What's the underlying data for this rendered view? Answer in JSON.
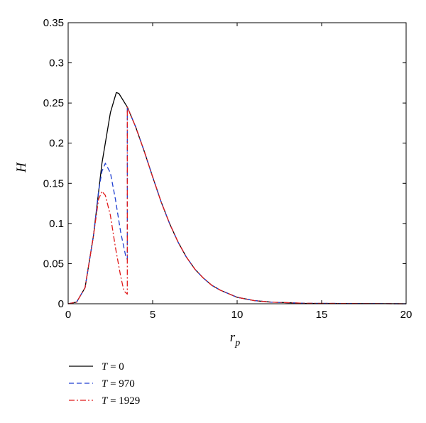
{
  "chart_data": {
    "type": "line",
    "title": "",
    "xlabel": "r",
    "xlabel_sub": "p",
    "ylabel": "H",
    "xlim": [
      0,
      20
    ],
    "ylim": [
      0,
      0.35
    ],
    "x_ticks": [
      "0",
      "5",
      "10",
      "15",
      "20"
    ],
    "y_ticks": [
      "0",
      "0.05",
      "0.1",
      "0.15",
      "0.2",
      "0.25",
      "0.3",
      "0.35"
    ],
    "grid": false,
    "legend_position": "below",
    "series": [
      {
        "name_var": "T",
        "name_eq": " = 0",
        "color": "#000000",
        "style": "solid",
        "points": [
          [
            0,
            0
          ],
          [
            0.5,
            0.002
          ],
          [
            1.0,
            0.02
          ],
          [
            1.5,
            0.085
          ],
          [
            2.0,
            0.175
          ],
          [
            2.5,
            0.238
          ],
          [
            2.85,
            0.263
          ],
          [
            3.0,
            0.262
          ],
          [
            3.5,
            0.245
          ],
          [
            4.0,
            0.22
          ],
          [
            4.5,
            0.19
          ],
          [
            5.0,
            0.158
          ],
          [
            5.5,
            0.127
          ],
          [
            6.0,
            0.1
          ],
          [
            6.5,
            0.077
          ],
          [
            7.0,
            0.058
          ],
          [
            7.5,
            0.043
          ],
          [
            8.0,
            0.032
          ],
          [
            8.5,
            0.023
          ],
          [
            9.0,
            0.017
          ],
          [
            10.0,
            0.008
          ],
          [
            11.0,
            0.004
          ],
          [
            12.0,
            0.002
          ],
          [
            14.0,
            0.0005
          ],
          [
            20.0,
            0
          ]
        ]
      },
      {
        "name_var": "T",
        "name_eq": " = 970",
        "color": "#1f3fd1",
        "style": "dashed",
        "points": [
          [
            0,
            0
          ],
          [
            0.5,
            0.002
          ],
          [
            1.0,
            0.02
          ],
          [
            1.5,
            0.085
          ],
          [
            1.8,
            0.14
          ],
          [
            2.0,
            0.165
          ],
          [
            2.2,
            0.175
          ],
          [
            2.5,
            0.163
          ],
          [
            2.8,
            0.13
          ],
          [
            3.1,
            0.09
          ],
          [
            3.4,
            0.06
          ],
          [
            3.5,
            0.055
          ],
          [
            3.5,
            0.245
          ],
          [
            4.0,
            0.22
          ],
          [
            4.5,
            0.19
          ],
          [
            5.0,
            0.158
          ],
          [
            5.5,
            0.127
          ],
          [
            6.0,
            0.1
          ],
          [
            6.5,
            0.077
          ],
          [
            7.0,
            0.058
          ],
          [
            7.5,
            0.043
          ],
          [
            8.0,
            0.032
          ],
          [
            8.5,
            0.023
          ],
          [
            9.0,
            0.017
          ],
          [
            10.0,
            0.008
          ],
          [
            11.0,
            0.004
          ],
          [
            12.0,
            0.002
          ],
          [
            14.0,
            0.0005
          ],
          [
            20.0,
            0
          ]
        ]
      },
      {
        "name_var": "T",
        "name_eq": " = 1929",
        "color": "#e01b1b",
        "style": "dashdot",
        "points": [
          [
            0,
            0
          ],
          [
            0.5,
            0.002
          ],
          [
            1.0,
            0.02
          ],
          [
            1.5,
            0.085
          ],
          [
            1.8,
            0.13
          ],
          [
            2.0,
            0.14
          ],
          [
            2.2,
            0.135
          ],
          [
            2.5,
            0.11
          ],
          [
            2.8,
            0.07
          ],
          [
            3.1,
            0.035
          ],
          [
            3.3,
            0.016
          ],
          [
            3.5,
            0.012
          ],
          [
            3.5,
            0.245
          ],
          [
            4.0,
            0.22
          ],
          [
            4.5,
            0.19
          ],
          [
            5.0,
            0.158
          ],
          [
            5.5,
            0.127
          ],
          [
            6.0,
            0.1
          ],
          [
            6.5,
            0.077
          ],
          [
            7.0,
            0.058
          ],
          [
            7.5,
            0.043
          ],
          [
            8.0,
            0.032
          ],
          [
            8.5,
            0.023
          ],
          [
            9.0,
            0.017
          ],
          [
            10.0,
            0.008
          ],
          [
            11.0,
            0.004
          ],
          [
            12.0,
            0.002
          ],
          [
            14.0,
            0.0005
          ],
          [
            20.0,
            0
          ]
        ]
      }
    ]
  }
}
